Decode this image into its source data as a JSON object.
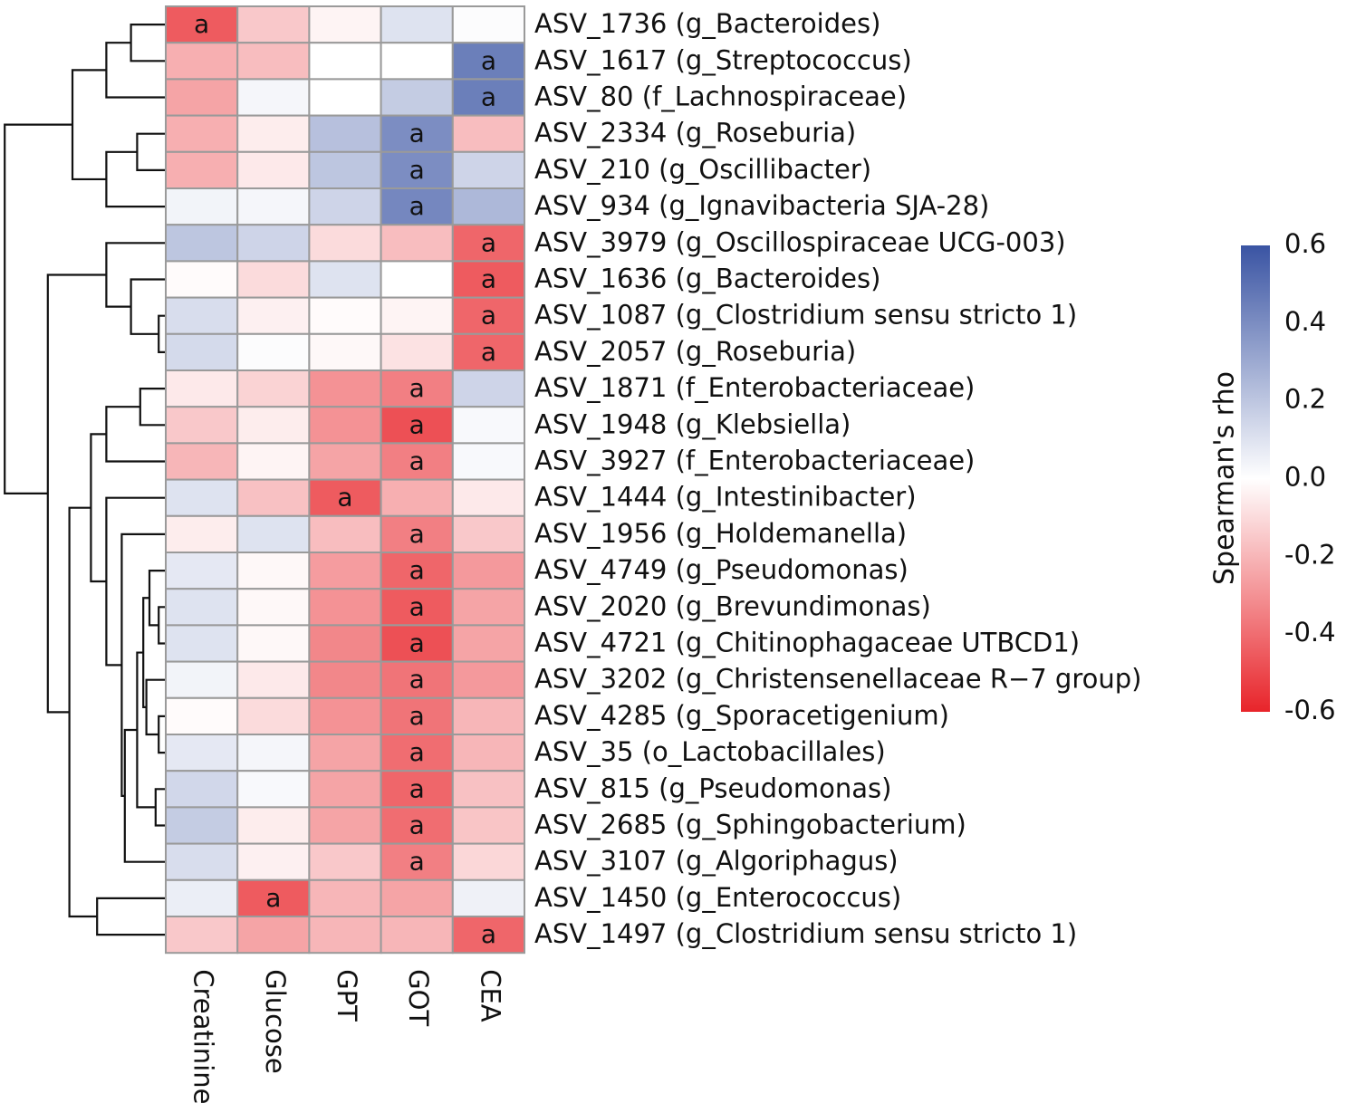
{
  "chart_data": {
    "type": "heatmap",
    "title": "",
    "legend_title": "Spearman's rho",
    "legend_placement": "right",
    "color_scale": {
      "min": -0.6,
      "max": 0.6,
      "low": "#e8242a",
      "mid": "#ffffff",
      "high": "#3a54a3"
    },
    "legend_ticks": [
      "0.6",
      "0.4",
      "0.2",
      "0.0",
      "-0.2",
      "-0.4",
      "-0.6"
    ],
    "legend_tick_values": [
      0.6,
      0.4,
      0.2,
      0.0,
      -0.2,
      -0.4,
      -0.6
    ],
    "columns": [
      "Creatinine",
      "Glucose",
      "GPT",
      "GOT",
      "CEA"
    ],
    "rows": [
      "ASV_1736 (g_Bacteroides)",
      "ASV_1617 (g_Streptococcus)",
      "ASV_80 (f_Lachnospiraceae)",
      "ASV_2334 (g_Roseburia)",
      "ASV_210 (g_Oscillibacter)",
      "ASV_934 (g_Ignavibacteria SJA-28)",
      "ASV_3979 (g_Oscillospiraceae UCG-003)",
      "ASV_1636 (g_Bacteroides)",
      "ASV_1087 (g_Clostridium sensu stricto 1)",
      "ASV_2057 (g_Roseburia)",
      "ASV_1871 (f_Enterobacteriaceae)",
      "ASV_1948 (g_Klebsiella)",
      "ASV_3927 (f_Enterobacteriaceae)",
      "ASV_1444 (g_Intestinibacter)",
      "ASV_1956 (g_Holdemanella)",
      "ASV_4749 (g_Pseudomonas)",
      "ASV_2020 (g_Brevundimonas)",
      "ASV_4721 (g_Chitinophagaceae UTBCD1)",
      "ASV_3202 (g_Christensenellaceae R−7 group)",
      "ASV_4285 (g_Sporacetigenium)",
      "ASV_35 (o_Lactobacillales)",
      "ASV_815 (g_Pseudomonas)",
      "ASV_2685 (g_Sphingobacterium)",
      "ASV_3107 (g_Algoriphagus)",
      "ASV_1450 (g_Enterococcus)",
      "ASV_1497 (g_Clostridium sensu stricto 1)"
    ],
    "values": [
      [
        -0.45,
        -0.15,
        -0.03,
        0.1,
        0.01
      ],
      [
        -0.22,
        -0.18,
        0.0,
        0.0,
        0.45
      ],
      [
        -0.25,
        0.03,
        0.0,
        0.18,
        0.45
      ],
      [
        -0.22,
        -0.05,
        0.22,
        0.4,
        -0.18
      ],
      [
        -0.22,
        -0.06,
        0.2,
        0.4,
        0.15
      ],
      [
        0.04,
        0.03,
        0.15,
        0.42,
        0.25
      ],
      [
        0.2,
        0.15,
        -0.1,
        -0.18,
        -0.42
      ],
      [
        -0.01,
        -0.1,
        0.1,
        0.0,
        -0.45
      ],
      [
        0.12,
        -0.04,
        -0.01,
        -0.03,
        -0.42
      ],
      [
        0.13,
        0.01,
        -0.02,
        -0.08,
        -0.42
      ],
      [
        -0.06,
        -0.12,
        -0.3,
        -0.35,
        0.15
      ],
      [
        -0.15,
        -0.05,
        -0.3,
        -0.48,
        0.02
      ],
      [
        -0.2,
        -0.03,
        -0.25,
        -0.35,
        0.02
      ],
      [
        0.1,
        -0.17,
        -0.45,
        -0.22,
        -0.06
      ],
      [
        -0.05,
        0.1,
        -0.18,
        -0.35,
        -0.15
      ],
      [
        0.08,
        -0.02,
        -0.27,
        -0.42,
        -0.28
      ],
      [
        0.1,
        -0.02,
        -0.3,
        -0.45,
        -0.25
      ],
      [
        0.1,
        -0.02,
        -0.33,
        -0.48,
        -0.25
      ],
      [
        0.04,
        -0.06,
        -0.33,
        -0.38,
        -0.28
      ],
      [
        -0.01,
        -0.1,
        -0.3,
        -0.38,
        -0.2
      ],
      [
        0.08,
        0.03,
        -0.25,
        -0.4,
        -0.2
      ],
      [
        0.14,
        0.02,
        -0.25,
        -0.42,
        -0.17
      ],
      [
        0.18,
        -0.05,
        -0.25,
        -0.4,
        -0.16
      ],
      [
        0.12,
        -0.04,
        -0.15,
        -0.35,
        -0.11
      ],
      [
        0.06,
        -0.45,
        -0.2,
        -0.25,
        0.05
      ],
      [
        -0.15,
        -0.25,
        -0.2,
        -0.2,
        -0.42
      ]
    ],
    "significant": [
      [
        0,
        0
      ],
      [
        1,
        4
      ],
      [
        2,
        4
      ],
      [
        3,
        3
      ],
      [
        4,
        3
      ],
      [
        5,
        3
      ],
      [
        6,
        4
      ],
      [
        7,
        4
      ],
      [
        8,
        4
      ],
      [
        9,
        4
      ],
      [
        10,
        3
      ],
      [
        11,
        3
      ],
      [
        12,
        3
      ],
      [
        13,
        2
      ],
      [
        14,
        3
      ],
      [
        15,
        3
      ],
      [
        16,
        3
      ],
      [
        17,
        3
      ],
      [
        18,
        3
      ],
      [
        19,
        3
      ],
      [
        20,
        3
      ],
      [
        21,
        3
      ],
      [
        22,
        3
      ],
      [
        23,
        3
      ],
      [
        24,
        1
      ],
      [
        25,
        4
      ]
    ],
    "significance_mark": "a",
    "row_dendrogram": [
      [
        0,
        1,
        0.55
      ],
      [
        26,
        2,
        0.95
      ],
      [
        3,
        4,
        0.45
      ],
      [
        28,
        5,
        0.95
      ],
      [
        27,
        29,
        1.5
      ],
      [
        8,
        9,
        0.1
      ],
      [
        7,
        31,
        0.55
      ],
      [
        6,
        32,
        0.95
      ],
      [
        10,
        11,
        0.4
      ],
      [
        34,
        12,
        0.95
      ],
      [
        16,
        17,
        0.1
      ],
      [
        15,
        36,
        0.25
      ],
      [
        19,
        20,
        0.1
      ],
      [
        18,
        38,
        0.3
      ],
      [
        37,
        39,
        0.35
      ],
      [
        21,
        22,
        0.15
      ],
      [
        40,
        41,
        0.45
      ],
      [
        42,
        23,
        0.65
      ],
      [
        14,
        43,
        0.7
      ],
      [
        13,
        44,
        0.95
      ],
      [
        35,
        45,
        1.2
      ],
      [
        24,
        25,
        1.1
      ],
      [
        46,
        47,
        1.55
      ],
      [
        33,
        48,
        1.9
      ],
      [
        30,
        49,
        2.6
      ]
    ]
  }
}
